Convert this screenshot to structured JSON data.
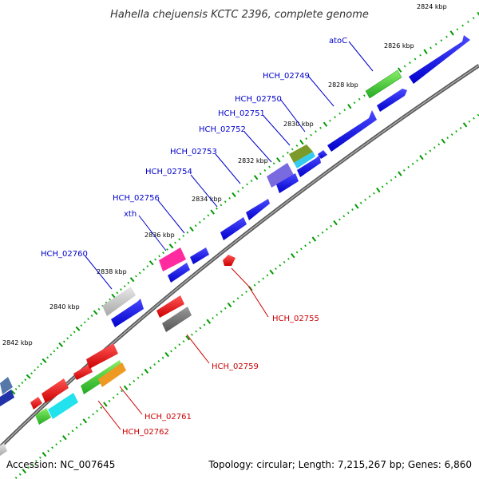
{
  "title": "Hahella chejuensis KCTC 2396, complete genome",
  "footer": {
    "accession": "Accession: NC_007645",
    "summary": "Topology: circular; Length: 7,215,267 bp; Genes: 6,860"
  },
  "scale_labels": [
    "2824 kbp",
    "2826 kbp",
    "2828 kbp",
    "2830 kbp",
    "2832 kbp",
    "2834 kbp",
    "2836 kbp",
    "2838 kbp",
    "2840 kbp",
    "2842 kbp"
  ],
  "forward_gene_labels": [
    "atoC",
    "HCH_02749",
    "HCH_02750",
    "HCH_02751",
    "HCH_02752",
    "HCH_02753",
    "HCH_02754",
    "HCH_02756",
    "xth",
    "HCH_02760"
  ],
  "reverse_gene_labels": [
    "HCH_02755",
    "HCH_02759",
    "HCH_02761",
    "HCH_02762"
  ],
  "colors": {
    "forward": "#0000ee",
    "reverse": "#ee0000",
    "backbone": "#777777",
    "tick_major": "#009900",
    "tick_minor": "#00aa00",
    "label_forward": "#0000cc",
    "label_reverse": "#cc0000"
  }
}
